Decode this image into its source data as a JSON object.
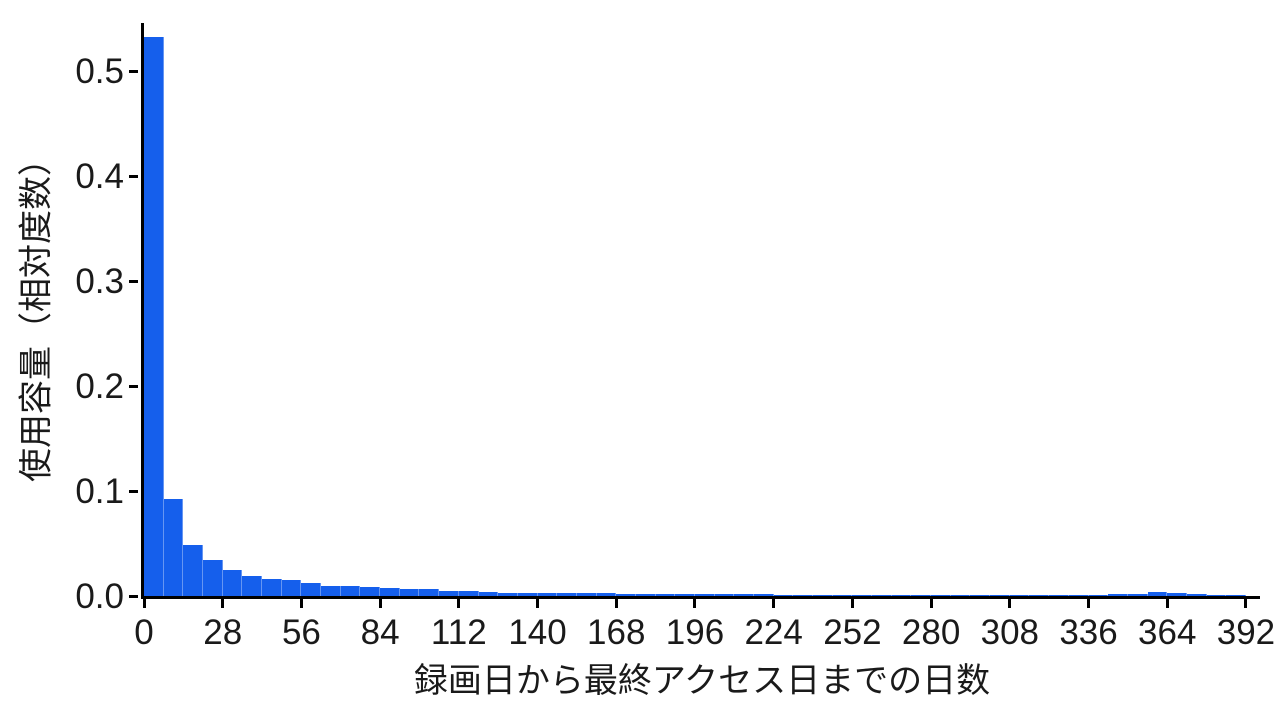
{
  "colors": {
    "bar": "#155fec",
    "axis": "#000000",
    "text": "#1a1a1a",
    "background": "#ffffff"
  },
  "chart_data": {
    "type": "bar",
    "subtype": "histogram",
    "title": "",
    "xlabel": "録画日から最終アクセス日までの日数",
    "ylabel": "使用容量（相対度数）",
    "xlim": [
      0,
      397
    ],
    "ylim": [
      0,
      0.546
    ],
    "grid": false,
    "legend": null,
    "x_ticks": [
      0,
      28,
      56,
      84,
      112,
      140,
      168,
      196,
      224,
      252,
      280,
      308,
      336,
      364,
      392
    ],
    "y_ticks": [
      0.0,
      0.1,
      0.2,
      0.3,
      0.4,
      0.5
    ],
    "y_tick_labels": [
      "0.0",
      "0.1",
      "0.2",
      "0.3",
      "0.4",
      "0.5"
    ],
    "bin_width_days": 7,
    "bin_start_day": 0,
    "values": [
      0.533,
      0.092,
      0.049,
      0.034,
      0.025,
      0.0195,
      0.0165,
      0.0148,
      0.0122,
      0.01,
      0.0095,
      0.0088,
      0.0079,
      0.0068,
      0.0066,
      0.0052,
      0.0049,
      0.0036,
      0.0031,
      0.003,
      0.0028,
      0.0026,
      0.0025,
      0.0024,
      0.0023,
      0.0022,
      0.0021,
      0.002,
      0.0018,
      0.0016,
      0.0016,
      0.0015,
      0.0014,
      0.0013,
      0.0013,
      0.0012,
      0.0012,
      0.0012,
      0.0011,
      0.0011,
      0.001,
      0.001,
      0.001,
      0.001,
      0.0011,
      0.0012,
      0.0012,
      0.0013,
      0.0014,
      0.0015,
      0.0019,
      0.0042,
      0.0028,
      0.0016,
      0.0012,
      0.0005
    ]
  }
}
